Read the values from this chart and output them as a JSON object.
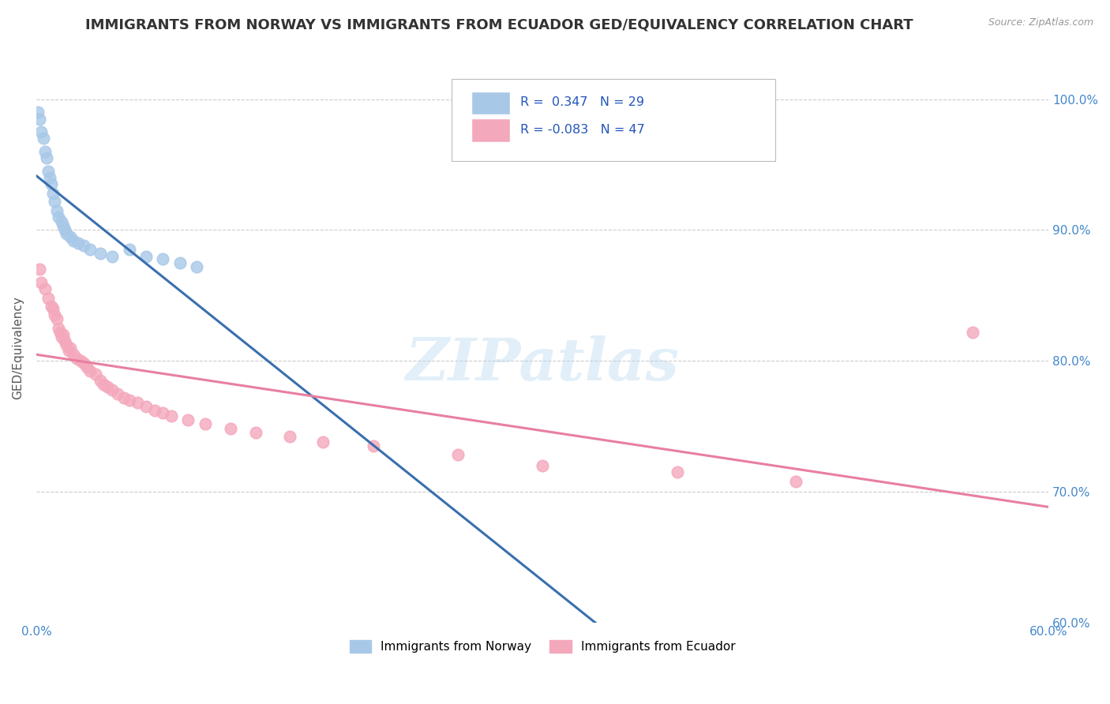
{
  "title": "IMMIGRANTS FROM NORWAY VS IMMIGRANTS FROM ECUADOR GED/EQUIVALENCY CORRELATION CHART",
  "source": "Source: ZipAtlas.com",
  "ylabel": "GED/Equivalency",
  "xlim": [
    0.0,
    0.6
  ],
  "ylim": [
    0.6,
    1.02
  ],
  "yticks": [
    0.6,
    0.7,
    0.8,
    0.9,
    1.0
  ],
  "yticklabels": [
    "60.0%",
    "70.0%",
    "80.0%",
    "90.0%",
    "100.0%"
  ],
  "norway_R": 0.347,
  "norway_N": 29,
  "ecuador_R": -0.083,
  "ecuador_N": 47,
  "norway_color": "#a8c8e8",
  "ecuador_color": "#f4a8bc",
  "norway_line_color": "#3a6fad",
  "ecuador_line_color": "#e87fa0",
  "watermark": "ZIPatlas",
  "norway_x": [
    0.001,
    0.002,
    0.003,
    0.004,
    0.005,
    0.006,
    0.007,
    0.008,
    0.009,
    0.01,
    0.011,
    0.012,
    0.013,
    0.015,
    0.016,
    0.017,
    0.018,
    0.02,
    0.022,
    0.025,
    0.028,
    0.032,
    0.038,
    0.045,
    0.055,
    0.065,
    0.075,
    0.085,
    0.095
  ],
  "norway_y": [
    0.99,
    0.985,
    0.975,
    0.97,
    0.96,
    0.955,
    0.945,
    0.94,
    0.935,
    0.928,
    0.922,
    0.915,
    0.91,
    0.906,
    0.903,
    0.9,
    0.897,
    0.895,
    0.892,
    0.89,
    0.888,
    0.885,
    0.882,
    0.88,
    0.885,
    0.88,
    0.878,
    0.875,
    0.872
  ],
  "ecuador_x": [
    0.002,
    0.003,
    0.005,
    0.007,
    0.009,
    0.01,
    0.011,
    0.012,
    0.013,
    0.014,
    0.015,
    0.016,
    0.017,
    0.018,
    0.019,
    0.02,
    0.022,
    0.024,
    0.026,
    0.028,
    0.03,
    0.032,
    0.035,
    0.038,
    0.04,
    0.042,
    0.045,
    0.048,
    0.052,
    0.055,
    0.06,
    0.065,
    0.07,
    0.075,
    0.08,
    0.09,
    0.1,
    0.115,
    0.13,
    0.15,
    0.17,
    0.2,
    0.25,
    0.3,
    0.38,
    0.45,
    0.555
  ],
  "ecuador_y": [
    0.87,
    0.86,
    0.855,
    0.848,
    0.842,
    0.84,
    0.835,
    0.832,
    0.825,
    0.822,
    0.818,
    0.82,
    0.815,
    0.812,
    0.808,
    0.81,
    0.805,
    0.802,
    0.8,
    0.798,
    0.795,
    0.792,
    0.79,
    0.785,
    0.782,
    0.78,
    0.778,
    0.775,
    0.772,
    0.77,
    0.768,
    0.765,
    0.762,
    0.76,
    0.758,
    0.755,
    0.752,
    0.748,
    0.745,
    0.742,
    0.738,
    0.735,
    0.728,
    0.72,
    0.715,
    0.708,
    0.822
  ],
  "background_color": "#ffffff",
  "grid_color": "#cccccc",
  "title_color": "#333333",
  "title_fontsize": 13,
  "axis_label_color": "#555555",
  "tick_color": "#4488cc",
  "legend_R_color": "#2255bb"
}
